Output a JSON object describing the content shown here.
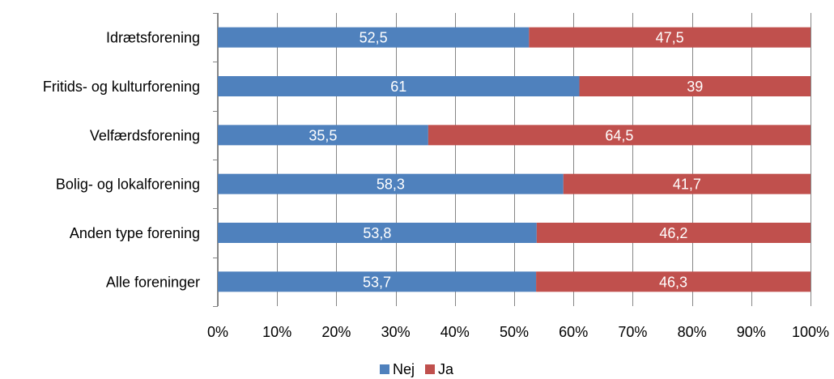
{
  "chart_data": {
    "type": "bar",
    "orientation": "horizontal",
    "stacked": "percent",
    "categories": [
      "Idrætsforening",
      "Fritids- og kulturforening",
      "Velfærdsforening",
      "Bolig- og lokalforening",
      "Anden type forening",
      "Alle foreninger"
    ],
    "series": [
      {
        "name": "Nej",
        "color": "#4f81bd",
        "values": [
          52.5,
          61,
          35.5,
          58.3,
          53.8,
          53.7
        ],
        "labels": [
          "52,5",
          "61",
          "35,5",
          "58,3",
          "53,8",
          "53,7"
        ]
      },
      {
        "name": "Ja",
        "color": "#c0504d",
        "values": [
          47.5,
          39,
          64.5,
          41.7,
          46.2,
          46.3
        ],
        "labels": [
          "47,5",
          "39",
          "64,5",
          "41,7",
          "46,2",
          "46,3"
        ]
      }
    ],
    "xlim": [
      0,
      100
    ],
    "xticks": [
      "0%",
      "10%",
      "20%",
      "30%",
      "40%",
      "50%",
      "60%",
      "70%",
      "80%",
      "90%",
      "100%"
    ],
    "grid": true,
    "gridline_color": "#868686",
    "legend": "bottom"
  }
}
